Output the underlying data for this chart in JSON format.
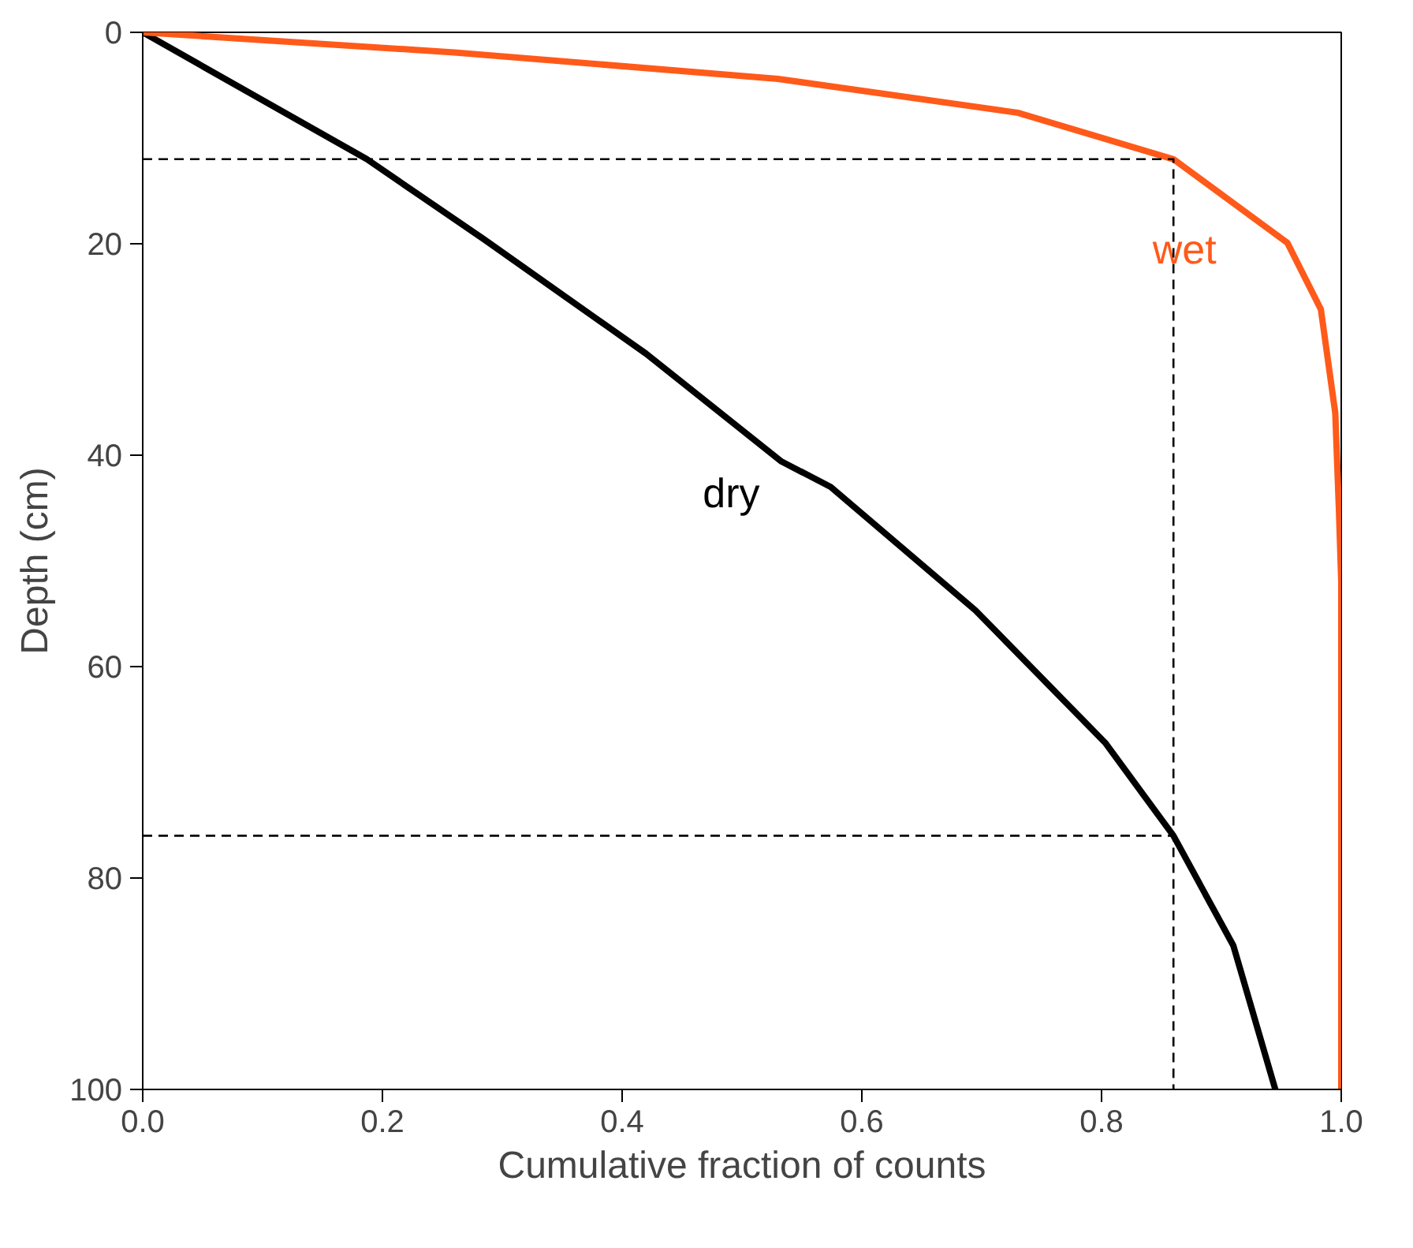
{
  "chart_data": {
    "type": "line",
    "xlabel": "Cumulative fraction of counts",
    "ylabel": "Depth (cm)",
    "xlim": [
      0,
      1
    ],
    "ylim": [
      100,
      0
    ],
    "xticks": [
      {
        "value": 0,
        "label": "0.0"
      },
      {
        "value": 0.2,
        "label": "0.2"
      },
      {
        "value": 0.4,
        "label": "0.4"
      },
      {
        "value": 0.6,
        "label": "0.6"
      },
      {
        "value": 0.8,
        "label": "0.8"
      },
      {
        "value": 1,
        "label": "1.0"
      }
    ],
    "yticks": [
      0,
      20,
      40,
      60,
      80,
      100
    ],
    "grid": false,
    "legend": false,
    "marker": "none",
    "series": [
      {
        "name": "dry",
        "color": "#000000",
        "line_style": "solid",
        "x": [
          0,
          0.187,
          0.285,
          0.42,
          0.533,
          0.574,
          0.695,
          0.803,
          0.86,
          0.91,
          0.945
        ],
        "values": [
          0,
          12,
          19.6,
          30.4,
          40.6,
          43,
          54.7,
          67.2,
          76,
          86.4,
          100
        ]
      },
      {
        "name": "wet",
        "color": "#ff5a1a",
        "line_style": "solid",
        "x": [
          0,
          0.26,
          0.53,
          0.73,
          0.86,
          0.955,
          0.983,
          0.995,
          0.998,
          1,
          1
        ],
        "values": [
          0,
          1.9,
          4.4,
          7.6,
          12,
          19.9,
          26.2,
          36,
          45,
          52,
          100
        ]
      },
      {
        "color": "#000000",
        "line_style": "dashed",
        "x": [
          0,
          0.86,
          0.86
        ],
        "values": [
          12,
          12,
          100
        ]
      },
      {
        "color": "#000000",
        "line_style": "dashed",
        "x": [
          0,
          0.86
        ],
        "values": [
          76,
          76
        ]
      }
    ]
  }
}
